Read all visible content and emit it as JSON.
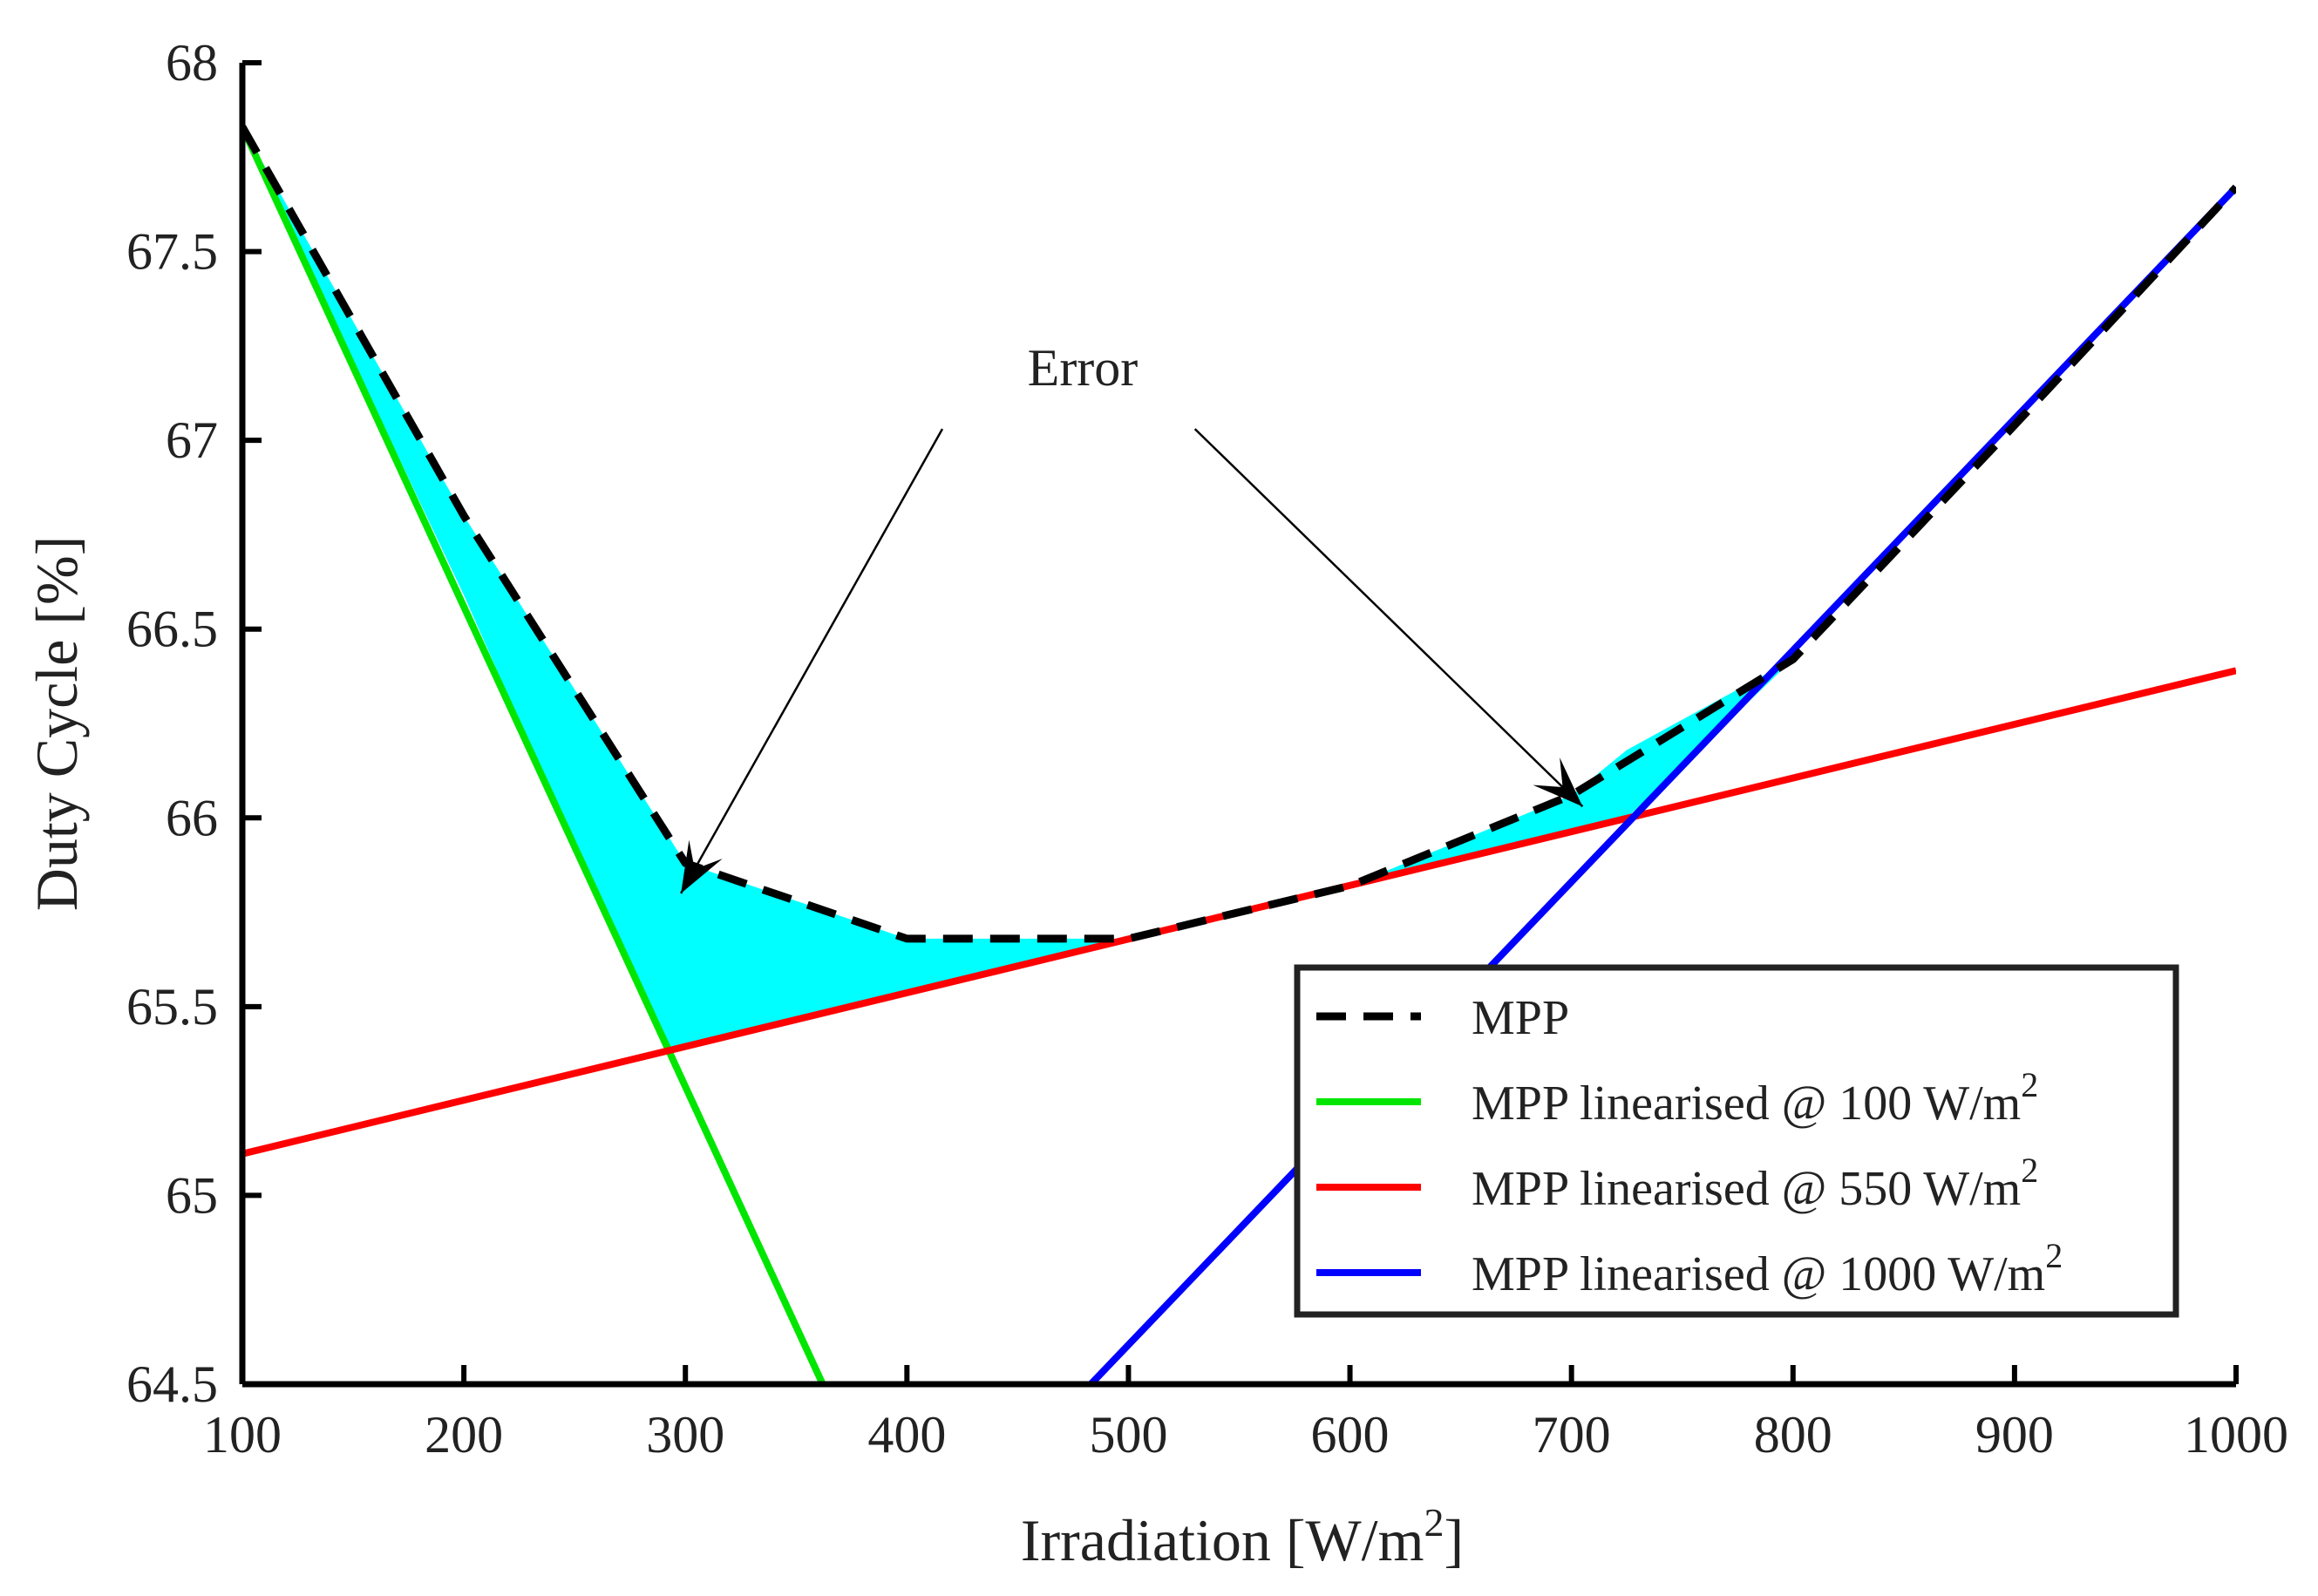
{
  "chart_data": {
    "type": "line",
    "title": "",
    "xlabel": "Irradiation [W/m",
    "xlabel_sup": "2",
    "xlabel_suffix": "]",
    "ylabel": "Duty Cycle [%]",
    "xlim": [
      100,
      1000
    ],
    "ylim": [
      64.5,
      68
    ],
    "xticks": [
      100,
      200,
      300,
      400,
      500,
      600,
      700,
      800,
      900,
      1000
    ],
    "yticks": [
      64.5,
      65,
      65.5,
      66,
      66.5,
      67,
      67.5,
      68
    ],
    "ytick_labels": [
      "64.5",
      "65",
      "65.5",
      "66",
      "66.5",
      "67",
      "67.5",
      "68"
    ],
    "grid": false,
    "legend_position": "bottom-right",
    "series": [
      {
        "name": "MPP",
        "style": "dashed",
        "color": "#000000",
        "x": [
          100,
          200,
          300,
          400,
          500,
          600,
          700,
          800,
          900,
          1000
        ],
        "y": [
          67.83,
          66.8,
          65.88,
          65.68,
          65.68,
          65.82,
          66.06,
          66.42,
          67.04,
          67.67
        ]
      },
      {
        "name": "MPP linearised @ 100 W/m",
        "sup": "2",
        "style": "solid",
        "color": "#00e600",
        "x": [
          100,
          362
        ],
        "y": [
          67.83,
          64.5
        ]
      },
      {
        "name": "MPP linearised @ 550 W/m",
        "sup": "2",
        "style": "solid",
        "color": "#ff0000",
        "x": [
          100,
          1000
        ],
        "y": [
          65.11,
          66.39
        ]
      },
      {
        "name": "MPP linearised @ 1000 W/m",
        "sup": "2",
        "style": "solid",
        "color": "#0000ff",
        "x": [
          483,
          1000
        ],
        "y": [
          64.5,
          67.67
        ]
      }
    ],
    "error_fill": {
      "color": "#00ffff",
      "x": [
        100,
        200,
        300,
        400,
        500,
        600,
        700,
        725,
        800,
        725,
        600,
        500,
        400,
        291,
        200,
        100
      ],
      "y": [
        67.83,
        66.8,
        65.88,
        65.68,
        65.68,
        65.82,
        66.06,
        66.18,
        66.42,
        66.0,
        65.82,
        65.68,
        65.54,
        65.38,
        66.59,
        67.83
      ]
    },
    "annotation": {
      "text": "Error",
      "anchor": [
        440,
        67.1
      ],
      "arrows": [
        {
          "from": [
            416,
            67.03
          ],
          "to": [
            298,
            65.8
          ]
        },
        {
          "from": [
            530,
            67.03
          ],
          "to": [
            705,
            66.03
          ]
        }
      ]
    }
  }
}
